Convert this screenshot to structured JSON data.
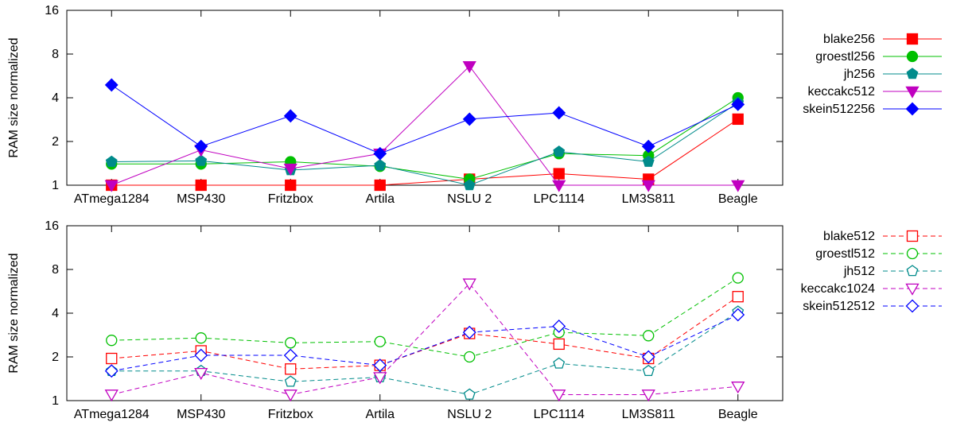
{
  "chart_data": [
    {
      "type": "line",
      "ylabel": "RAM size normalized",
      "xlabel": "",
      "y_scale": "log2",
      "ylim": [
        1,
        16
      ],
      "yticks": [
        "1",
        "2",
        "4",
        "8",
        "16"
      ],
      "categories": [
        "ATmega1284",
        "MSP430",
        "Fritzbox",
        "Artila",
        "NSLU 2",
        "LPC1114",
        "LM3S811",
        "Beagle"
      ],
      "legend_position": "right",
      "series": [
        {
          "name": "blake256",
          "color": "#ff0000",
          "marker": "square",
          "filled": true,
          "dashed": false,
          "values": [
            1.0,
            1.0,
            1.0,
            1.0,
            1.1,
            1.2,
            1.1,
            2.85
          ]
        },
        {
          "name": "groestl256",
          "color": "#00c000",
          "marker": "circle",
          "filled": true,
          "dashed": false,
          "values": [
            1.4,
            1.4,
            1.45,
            1.35,
            1.1,
            1.65,
            1.6,
            4.0
          ]
        },
        {
          "name": "jh256",
          "color": "#008b8b",
          "marker": "pentagon",
          "filled": true,
          "dashed": false,
          "values": [
            1.45,
            1.47,
            1.27,
            1.37,
            1.0,
            1.7,
            1.45,
            3.7
          ]
        },
        {
          "name": "keccakc512",
          "color": "#c000c0",
          "marker": "triangle-down",
          "filled": true,
          "dashed": false,
          "values": [
            1.0,
            1.75,
            1.3,
            1.65,
            6.6,
            1.0,
            1.0,
            1.0
          ]
        },
        {
          "name": "skein512256",
          "color": "#0000ff",
          "marker": "diamond",
          "filled": true,
          "dashed": false,
          "values": [
            4.9,
            1.85,
            3.0,
            1.65,
            2.85,
            3.15,
            1.85,
            3.6
          ]
        }
      ]
    },
    {
      "type": "line",
      "ylabel": "RAM size normalized",
      "xlabel": "",
      "y_scale": "log2",
      "ylim": [
        1,
        16
      ],
      "yticks": [
        "1",
        "2",
        "4",
        "8",
        "16"
      ],
      "categories": [
        "ATmega1284",
        "MSP430",
        "Fritzbox",
        "Artila",
        "NSLU 2",
        "LPC1114",
        "LM3S811",
        "Beagle"
      ],
      "legend_position": "right",
      "series": [
        {
          "name": "blake512",
          "color": "#ff0000",
          "marker": "square",
          "filled": false,
          "dashed": true,
          "values": [
            1.95,
            2.2,
            1.65,
            1.75,
            2.9,
            2.45,
            1.95,
            5.2
          ]
        },
        {
          "name": "groestl512",
          "color": "#00c000",
          "marker": "circle",
          "filled": false,
          "dashed": true,
          "values": [
            2.6,
            2.7,
            2.5,
            2.55,
            2.0,
            2.95,
            2.8,
            7.0
          ]
        },
        {
          "name": "jh512",
          "color": "#008b8b",
          "marker": "pentagon",
          "filled": false,
          "dashed": true,
          "values": [
            1.6,
            1.6,
            1.35,
            1.45,
            1.1,
            1.8,
            1.6,
            4.1
          ]
        },
        {
          "name": "keccakc1024",
          "color": "#c000c0",
          "marker": "triangle-down",
          "filled": false,
          "dashed": true,
          "values": [
            1.1,
            1.55,
            1.1,
            1.45,
            6.4,
            1.1,
            1.1,
            1.25
          ]
        },
        {
          "name": "skein512512",
          "color": "#0000ff",
          "marker": "diamond",
          "filled": false,
          "dashed": true,
          "values": [
            1.6,
            2.05,
            2.05,
            1.75,
            2.95,
            3.25,
            2.0,
            3.9
          ]
        }
      ]
    }
  ]
}
